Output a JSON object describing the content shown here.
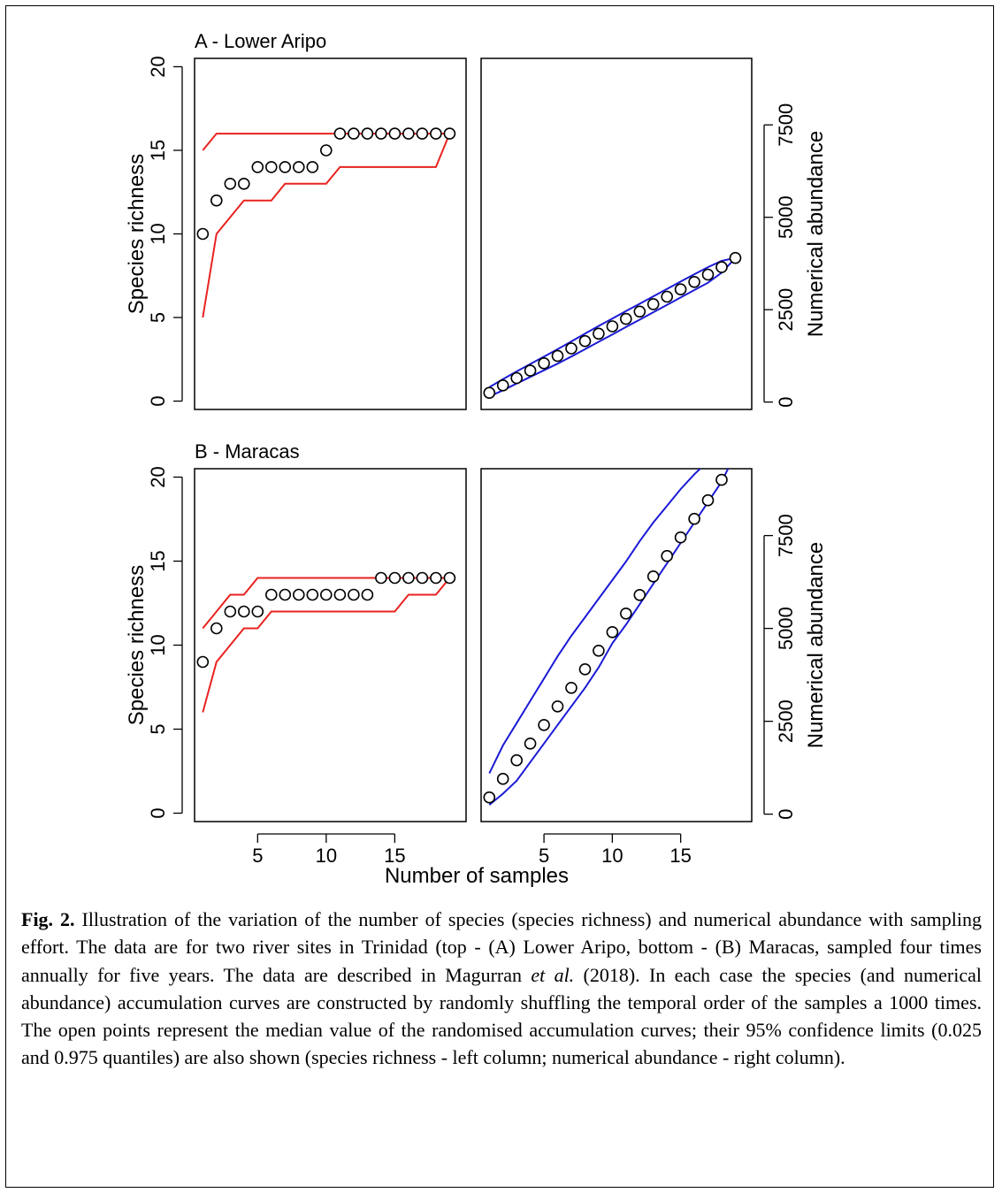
{
  "figure": {
    "x_axis_label": "Number of samples",
    "caption": {
      "label": "Fig. 2.",
      "p1": " Illustration of the variation of the number of species (species richness) and numerical abundance with sampling effort. The data are for two river sites in Trinidad (top - (A) Lower Aripo, bottom - (B) Maracas, sampled four times annually for five years. The data are described in Magurran ",
      "p1_em": "et al.",
      "p2": " (2018). In each case the species (and numerical abundance) accumulation curves are constructed by randomly shuffling the temporal order of the samples a 1000 times. The open points represent the median value of the randomised accumulation curves; their 95% confidence limits (0.025 and 0.975 quantiles) are also shown (species richness - left column; numerical abundance - right column)."
    }
  },
  "chart_data": [
    {
      "type": "scatter",
      "panel": "A",
      "title": "A  - Lower Aripo",
      "ylabel": "Species richness",
      "xlim": [
        0.4,
        20.2
      ],
      "ylim": [
        -0.5,
        20.5
      ],
      "y_ticks": [
        0,
        5,
        10,
        15,
        20
      ],
      "x_ticks": [
        5,
        10,
        15
      ],
      "x_tick_labels_shown": false,
      "median_color": "#000000",
      "ci_color": "#e8231f",
      "x": [
        1,
        2,
        3,
        4,
        5,
        6,
        7,
        8,
        9,
        10,
        11,
        12,
        13,
        14,
        15,
        16,
        17,
        18,
        19
      ],
      "median": [
        10,
        12,
        13,
        13,
        14,
        14,
        14,
        14,
        14,
        15,
        16,
        16,
        16,
        16,
        16,
        16,
        16,
        16,
        16
      ],
      "ci_lower": [
        5,
        10,
        11,
        12,
        12,
        12,
        13,
        13,
        13,
        13,
        14,
        14,
        14,
        14,
        14,
        14,
        14,
        14,
        16
      ],
      "ci_upper": [
        15,
        16,
        16,
        16,
        16,
        16,
        16,
        16,
        16,
        16,
        16,
        16,
        16,
        16,
        16,
        16,
        16,
        16,
        16
      ]
    },
    {
      "type": "scatter",
      "panel": "A",
      "ylabel": "Numerical abundance",
      "y_axis_side": "right",
      "xlim": [
        0.4,
        20.2
      ],
      "ylim": [
        -200,
        9300
      ],
      "y_ticks": [
        0,
        2500,
        5000,
        7500
      ],
      "x_ticks": [
        5,
        10,
        15
      ],
      "x_tick_labels_shown": false,
      "median_color": "#000000",
      "ci_color": "#1a1ad6",
      "x": [
        1,
        2,
        3,
        4,
        5,
        6,
        7,
        8,
        9,
        10,
        11,
        12,
        13,
        14,
        15,
        16,
        17,
        18,
        19
      ],
      "median": [
        250,
        450,
        650,
        850,
        1050,
        1250,
        1450,
        1650,
        1850,
        2050,
        2250,
        2450,
        2650,
        2850,
        3050,
        3250,
        3450,
        3650,
        3900
      ],
      "ci_lower": [
        150,
        320,
        500,
        680,
        860,
        1040,
        1230,
        1430,
        1630,
        1830,
        2030,
        2230,
        2430,
        2630,
        2830,
        3030,
        3230,
        3500,
        3900
      ],
      "ci_upper": [
        400,
        620,
        830,
        1030,
        1230,
        1430,
        1640,
        1850,
        2060,
        2260,
        2460,
        2660,
        2860,
        3060,
        3260,
        3460,
        3650,
        3820,
        3900
      ]
    },
    {
      "type": "scatter",
      "panel": "B",
      "title": "B  - Maracas",
      "ylabel": "Species richness",
      "xlim": [
        0.4,
        20.2
      ],
      "ylim": [
        -0.5,
        20.5
      ],
      "y_ticks": [
        0,
        5,
        10,
        15,
        20
      ],
      "x_ticks": [
        5,
        10,
        15
      ],
      "median_color": "#000000",
      "ci_color": "#e8231f",
      "x": [
        1,
        2,
        3,
        4,
        5,
        6,
        7,
        8,
        9,
        10,
        11,
        12,
        13,
        14,
        15,
        16,
        17,
        18,
        19
      ],
      "median": [
        9,
        11,
        12,
        12,
        12,
        13,
        13,
        13,
        13,
        13,
        13,
        13,
        13,
        14,
        14,
        14,
        14,
        14,
        14
      ],
      "ci_lower": [
        6,
        9,
        10,
        11,
        11,
        12,
        12,
        12,
        12,
        12,
        12,
        12,
        12,
        12,
        12,
        13,
        13,
        13,
        14
      ],
      "ci_upper": [
        11,
        12,
        13,
        13,
        14,
        14,
        14,
        14,
        14,
        14,
        14,
        14,
        14,
        14,
        14,
        14,
        14,
        14,
        14
      ]
    },
    {
      "type": "scatter",
      "panel": "B",
      "ylabel": "Numerical abundance",
      "y_axis_side": "right",
      "xlim": [
        0.4,
        20.2
      ],
      "ylim": [
        -200,
        9300
      ],
      "y_ticks": [
        0,
        2500,
        5000,
        7500
      ],
      "x_ticks": [
        5,
        10,
        15
      ],
      "median_color": "#000000",
      "ci_color": "#1a1ad6",
      "x": [
        1,
        2,
        3,
        4,
        5,
        6,
        7,
        8,
        9,
        10,
        11,
        12,
        13,
        14,
        15,
        16,
        17,
        18,
        19
      ],
      "median": [
        450,
        950,
        1450,
        1900,
        2400,
        2900,
        3400,
        3900,
        4400,
        4900,
        5400,
        5900,
        6400,
        6950,
        7450,
        7950,
        8450,
        9000,
        9550
      ],
      "ci_lower": [
        250,
        550,
        900,
        1400,
        1900,
        2400,
        2900,
        3400,
        3950,
        4600,
        5100,
        5650,
        6200,
        6750,
        7300,
        7850,
        8400,
        8950,
        9700
      ],
      "ci_upper": [
        1100,
        1850,
        2450,
        3050,
        3650,
        4250,
        4800,
        5300,
        5800,
        6300,
        6800,
        7350,
        7850,
        8300,
        8750,
        9150,
        9500,
        9700,
        9800
      ]
    }
  ]
}
